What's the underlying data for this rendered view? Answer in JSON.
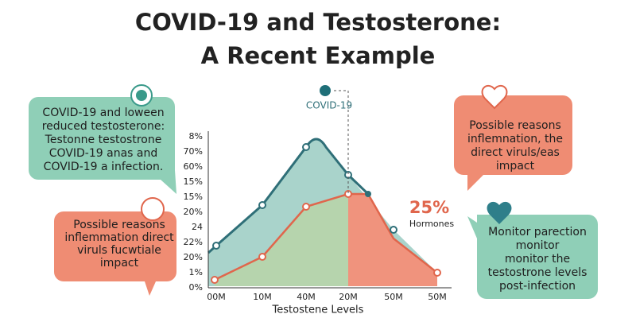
{
  "title": {
    "lines": [
      "COVID-19 and Testosterone:",
      "A Recent Example"
    ]
  },
  "callouts": [
    {
      "lines": [
        "COVID-19 and loween",
        "reduced testosterone:",
        "Testonne testostrone",
        "COVID-19 anas and",
        "COVID-19 a infection."
      ]
    },
    {
      "lines": [
        "Possible reasons",
        "inflemmation direct",
        "viruls fucwtiale",
        "impact"
      ]
    },
    {
      "lines": [
        "Possible reasons",
        "inflemnation, the",
        "direct viruls/eas",
        "impact"
      ]
    },
    {
      "lines": [
        "Monitor parection",
        "monitor",
        "monitor the",
        "testostrone levels",
        "post-infection"
      ]
    }
  ],
  "chart": {
    "series_label": "COVID-19",
    "annotation": {
      "value_text": "25%",
      "label": "Hormones"
    },
    "y_tick_labels": [
      "8%",
      "70%",
      "60%",
      "15%",
      "15%",
      "20%",
      "24",
      "22%",
      "20%",
      "1%",
      "0%"
    ],
    "x_tick_labels": [
      "00M",
      "10M",
      "40M",
      "20M",
      "50M",
      "50M"
    ],
    "x_axis_label": "Testostene Levels"
  }
}
